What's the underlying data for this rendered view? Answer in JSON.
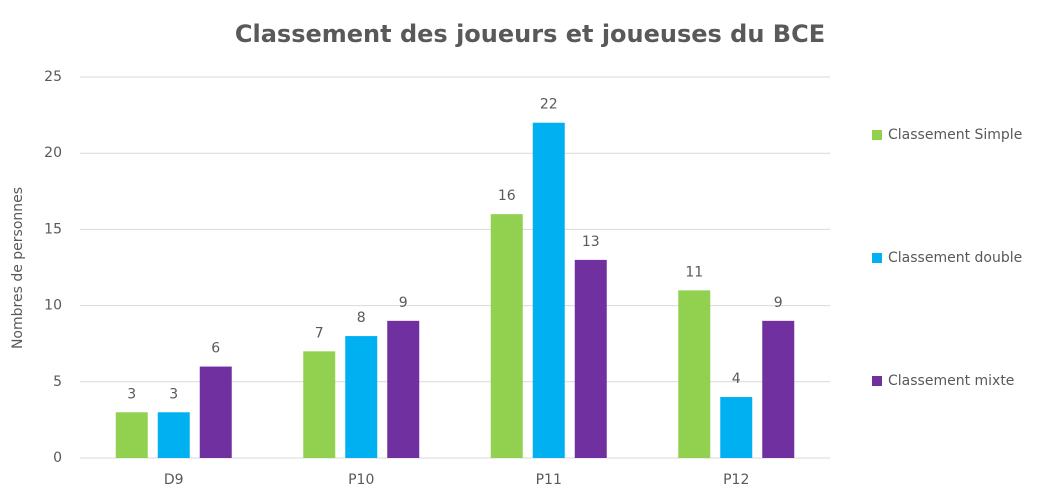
{
  "chart_data": {
    "type": "bar",
    "title": "Classement des joueurs et joueuses du BCE",
    "y_label": "Nombres de personnes",
    "categories": [
      "D9",
      "P10",
      "P11",
      "P12"
    ],
    "series": [
      {
        "name": "Classement Simple",
        "color": "#92d050",
        "values": [
          3,
          7,
          16,
          11
        ]
      },
      {
        "name": "Classement double",
        "color": "#00b0f0",
        "values": [
          3,
          8,
          22,
          4
        ]
      },
      {
        "name": "Classement mixte",
        "color": "#7030a0",
        "values": [
          6,
          9,
          13,
          9
        ]
      }
    ],
    "ylim": [
      0,
      25
    ],
    "yticks": [
      0,
      5,
      10,
      15,
      20,
      25
    ],
    "grid": true,
    "legend": "right",
    "data_labels": true
  }
}
